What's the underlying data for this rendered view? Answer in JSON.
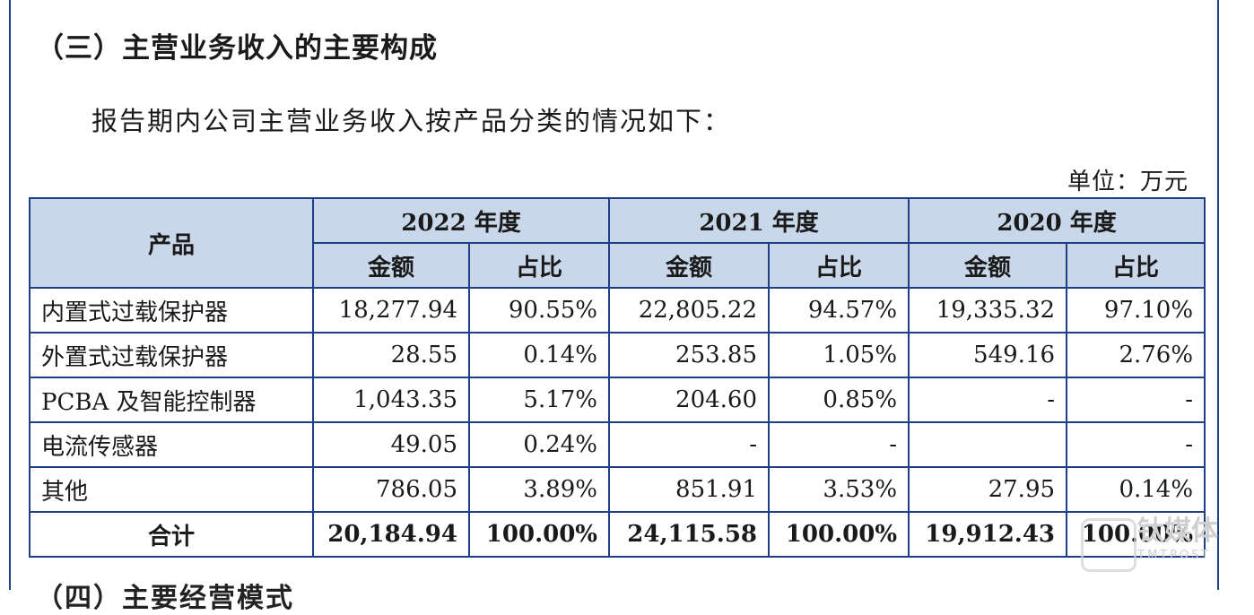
{
  "heading": "（三）主营业务收入的主要构成",
  "intro": "报告期内公司主营业务收入按产品分类的情况如下：",
  "unit": "单位：万元",
  "table": {
    "product_header": "产品",
    "years": [
      "2022 年度",
      "2021 年度",
      "2020 年度"
    ],
    "sub_headers": [
      "金额",
      "占比",
      "金额",
      "占比",
      "金额",
      "占比"
    ],
    "rows": [
      {
        "name": "内置式过载保护器",
        "cells": [
          "18,277.94",
          "90.55%",
          "22,805.22",
          "94.57%",
          "19,335.32",
          "97.10%"
        ]
      },
      {
        "name": "外置式过载保护器",
        "cells": [
          "28.55",
          "0.14%",
          "253.85",
          "1.05%",
          "549.16",
          "2.76%"
        ]
      },
      {
        "name": "PCBA 及智能控制器",
        "cells": [
          "1,043.35",
          "5.17%",
          "204.60",
          "0.85%",
          "-",
          "-"
        ]
      },
      {
        "name": "电流传感器",
        "cells": [
          "49.05",
          "0.24%",
          "-",
          "-",
          "",
          "-"
        ]
      },
      {
        "name": "其他",
        "cells": [
          "786.05",
          "3.89%",
          "851.91",
          "3.53%",
          "27.95",
          "0.14%"
        ]
      }
    ],
    "total": {
      "name": "合计",
      "cells": [
        "20,184.94",
        "100.00%",
        "24,115.58",
        "100.00%",
        "19,912.43",
        "100.00%"
      ]
    }
  },
  "next_heading_partial": "（四）主要经营模式",
  "watermark": {
    "text": "钛媒体",
    "sub": "TMTPOST"
  }
}
